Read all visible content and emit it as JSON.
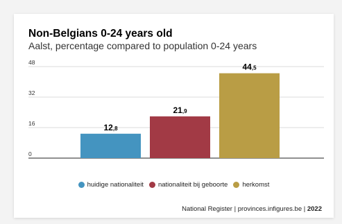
{
  "footer": {
    "source": "National Register | provinces.infigures.be | ",
    "year": "2022"
  },
  "chart_data": {
    "type": "bar",
    "title": "Non-Belgians 0-24 years old",
    "subtitle": "Aalst, percentage compared to population 0-24 years",
    "xlabel": "",
    "ylabel": "",
    "ylim": [
      0,
      48
    ],
    "yticks": [
      0,
      16,
      32,
      48
    ],
    "grid": true,
    "legend_position": "bottom",
    "categories": [
      "huidige nationaliteit",
      "nationaliteit bij geboorte",
      "herkomst"
    ],
    "values": [
      12.8,
      21.9,
      44.5
    ],
    "value_labels": [
      {
        "main": "12",
        "decimal": ",8"
      },
      {
        "main": "21",
        "decimal": ",9"
      },
      {
        "main": "44",
        "decimal": ",5"
      }
    ],
    "colors": [
      "#4494c0",
      "#a23a45",
      "#b99d45"
    ]
  }
}
